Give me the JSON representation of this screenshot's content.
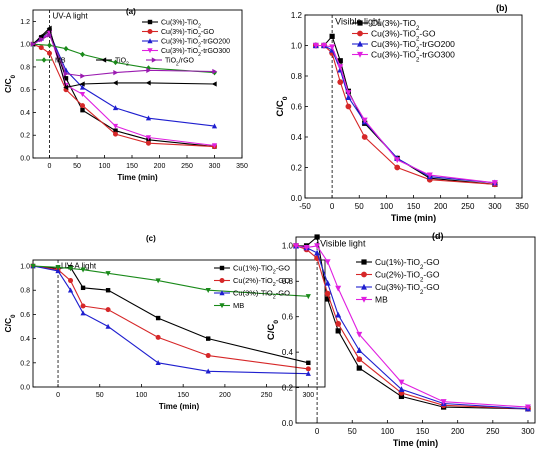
{
  "chart_data": [
    {
      "panel_id": "(a)",
      "type": "line",
      "xlabel": "Time (min)",
      "ylabel": "C/C₀",
      "xlim": [
        -30,
        350
      ],
      "ylim": [
        0,
        1.3
      ],
      "xticks": [
        0,
        50,
        100,
        150,
        200,
        250,
        300,
        350
      ],
      "yticks": [
        0,
        0.2,
        0.4,
        0.6,
        0.8,
        1.0,
        1.2
      ],
      "ytick_labels": [
        "0.0",
        "0.2",
        "0.4",
        "0.6",
        "0.8",
        "1.0",
        "1.2"
      ],
      "light_label": "UV-A light",
      "light_x": 0,
      "legend_position": "top-right",
      "legend_layout": "1-3-2",
      "series": [
        {
          "name": "Cu(3%)-TiO₂",
          "color": "#000000",
          "marker": "square",
          "x": [
            -30,
            -15,
            0,
            30,
            60,
            120,
            180,
            300
          ],
          "y": [
            1.0,
            1.06,
            1.12,
            0.7,
            0.42,
            0.24,
            0.16,
            0.1
          ]
        },
        {
          "name": "Cu(3%)-TiO₂-GO",
          "color": "#d62728",
          "marker": "circle",
          "x": [
            -30,
            -15,
            0,
            30,
            60,
            120,
            180,
            300
          ],
          "y": [
            1.0,
            0.97,
            0.92,
            0.6,
            0.46,
            0.21,
            0.13,
            0.1
          ]
        },
        {
          "name": "Cu(3%)-TiO₂-trGO200",
          "color": "#1f1fcf",
          "marker": "triangle",
          "x": [
            -30,
            -15,
            0,
            30,
            60,
            120,
            180,
            300
          ],
          "y": [
            1.0,
            1.05,
            1.1,
            0.77,
            0.62,
            0.44,
            0.35,
            0.28
          ]
        },
        {
          "name": "Cu(3%)-TiO₂-trGO300",
          "color": "#e020e0",
          "marker": "triangle-down",
          "x": [
            -30,
            -15,
            0,
            30,
            60,
            120,
            180,
            300
          ],
          "y": [
            1.0,
            1.04,
            1.1,
            0.64,
            0.56,
            0.28,
            0.18,
            0.11
          ]
        },
        {
          "name": "MB",
          "color": "#1a8a1a",
          "marker": "diamond",
          "x": [
            -30,
            0,
            30,
            60,
            120,
            180,
            300
          ],
          "y": [
            1.0,
            0.99,
            0.96,
            0.91,
            0.84,
            0.79,
            0.75
          ]
        },
        {
          "name": "TiO₂",
          "color": "#000000",
          "marker": "left-triangle",
          "x": [
            -30,
            -15,
            0,
            30,
            60,
            120,
            180,
            300
          ],
          "y": [
            1.0,
            1.07,
            1.14,
            0.62,
            0.65,
            0.66,
            0.66,
            0.65
          ]
        },
        {
          "name": "TiO₂/rGO",
          "color": "#9a1ab0",
          "marker": "right-triangle",
          "x": [
            -30,
            -15,
            0,
            30,
            60,
            120,
            180,
            300
          ],
          "y": [
            1.0,
            1.04,
            1.08,
            0.74,
            0.72,
            0.75,
            0.77,
            0.76
          ]
        }
      ]
    },
    {
      "panel_id": "(b)",
      "type": "line",
      "xlabel": "Time (min)",
      "ylabel": "C/C₀",
      "xlim": [
        -50,
        350
      ],
      "ylim": [
        0,
        1.2
      ],
      "xticks": [
        -50,
        0,
        50,
        100,
        150,
        200,
        250,
        300,
        350
      ],
      "yticks": [
        0,
        0.2,
        0.4,
        0.6,
        0.8,
        1.0,
        1.2
      ],
      "ytick_labels": [
        "0.0",
        "0.2",
        "0.4",
        "0.6",
        "0.8",
        "1.0",
        "1.2"
      ],
      "light_label": "Visible light",
      "light_x": 0,
      "legend_position": "top-right",
      "legend_layout": "single",
      "series": [
        {
          "name": "Cu(3%)-TiO₂",
          "color": "#000000",
          "marker": "square",
          "x": [
            -30,
            -15,
            0,
            15,
            30,
            60,
            120,
            180,
            300
          ],
          "y": [
            1.0,
            1.0,
            1.06,
            0.9,
            0.7,
            0.49,
            0.26,
            0.13,
            0.09
          ]
        },
        {
          "name": "Cu(3%)-TiO₂-GO",
          "color": "#d62728",
          "marker": "circle",
          "x": [
            -30,
            -15,
            0,
            15,
            30,
            60,
            120,
            180,
            300
          ],
          "y": [
            1.0,
            1.0,
            0.95,
            0.76,
            0.6,
            0.4,
            0.2,
            0.12,
            0.09
          ]
        },
        {
          "name": "Cu(3%)-TiO₂-trGO200",
          "color": "#1f1fcf",
          "marker": "triangle",
          "x": [
            -30,
            -15,
            0,
            15,
            30,
            60,
            120,
            180,
            300
          ],
          "y": [
            1.0,
            1.0,
            0.97,
            0.84,
            0.66,
            0.5,
            0.26,
            0.14,
            0.1
          ]
        },
        {
          "name": "Cu(3%)-TiO₂-trGO300",
          "color": "#e020e0",
          "marker": "triangle-down",
          "x": [
            -30,
            -15,
            0,
            15,
            30,
            60,
            120,
            180,
            300
          ],
          "y": [
            1.0,
            1.0,
            0.99,
            0.86,
            0.69,
            0.51,
            0.25,
            0.15,
            0.1
          ]
        }
      ]
    },
    {
      "panel_id": "(c)",
      "type": "line",
      "xlabel": "Time (min)",
      "ylabel": "C/C₀",
      "xlim": [
        -30,
        320
      ],
      "ylim": [
        0,
        1.05
      ],
      "xticks": [
        0,
        50,
        100,
        150,
        200,
        250,
        300
      ],
      "yticks": [
        0,
        0.2,
        0.4,
        0.6,
        0.8,
        1.0
      ],
      "ytick_labels": [
        "0.0",
        "0.2",
        "0.4",
        "0.6",
        "0.8",
        "1.0"
      ],
      "light_label": "UV-A light",
      "light_x": 0,
      "legend_position": "top-right",
      "legend_layout": "single",
      "series": [
        {
          "name": "Cu(1%)-TiO₂-GO",
          "color": "#000000",
          "marker": "square",
          "x": [
            -30,
            0,
            15,
            30,
            60,
            120,
            180,
            300
          ],
          "y": [
            1.0,
            0.98,
            0.99,
            0.82,
            0.8,
            0.57,
            0.4,
            0.2
          ]
        },
        {
          "name": "Cu(2%)-TiO₂-GO",
          "color": "#d62728",
          "marker": "circle",
          "x": [
            -30,
            0,
            15,
            30,
            60,
            120,
            180,
            300
          ],
          "y": [
            1.0,
            0.97,
            0.88,
            0.67,
            0.64,
            0.41,
            0.26,
            0.15
          ]
        },
        {
          "name": "Cu(3%)-TiO₂-GO",
          "color": "#1f1fcf",
          "marker": "triangle",
          "x": [
            -30,
            0,
            15,
            30,
            60,
            120,
            180,
            300
          ],
          "y": [
            1.0,
            0.96,
            0.8,
            0.61,
            0.5,
            0.2,
            0.13,
            0.11
          ]
        },
        {
          "name": "MB",
          "color": "#1a8a1a",
          "marker": "triangle-down",
          "x": [
            -30,
            0,
            15,
            30,
            60,
            120,
            180,
            300
          ],
          "y": [
            1.0,
            0.99,
            0.98,
            0.97,
            0.94,
            0.88,
            0.8,
            0.75
          ]
        }
      ]
    },
    {
      "panel_id": "(d)",
      "type": "line",
      "xlabel": "Time (min)",
      "ylabel": "C/C₀",
      "xlim": [
        -30,
        310
      ],
      "ylim": [
        0,
        1.05
      ],
      "xticks": [
        0,
        50,
        100,
        150,
        200,
        250,
        300
      ],
      "yticks": [
        0,
        0.2,
        0.4,
        0.6,
        0.8,
        1.0
      ],
      "ytick_labels": [
        "0.0",
        "0.2",
        "0.4",
        "0.6",
        "0.8",
        "1.0"
      ],
      "light_label": "Visible light",
      "light_x": 0,
      "legend_position": "top-right",
      "legend_layout": "single",
      "series": [
        {
          "name": "Cu(1%)-TiO₂-GO",
          "color": "#000000",
          "marker": "square",
          "x": [
            -30,
            -15,
            0,
            15,
            30,
            60,
            120,
            180,
            300
          ],
          "y": [
            1.0,
            1.0,
            1.05,
            0.7,
            0.52,
            0.31,
            0.15,
            0.09,
            0.08
          ]
        },
        {
          "name": "Cu(2%)-TiO₂-GO",
          "color": "#d62728",
          "marker": "circle",
          "x": [
            -30,
            -15,
            0,
            15,
            30,
            60,
            120,
            180,
            300
          ],
          "y": [
            1.0,
            0.98,
            0.93,
            0.73,
            0.56,
            0.36,
            0.17,
            0.1,
            0.08
          ]
        },
        {
          "name": "Cu(3%)-TiO₂-GO",
          "color": "#1f1fcf",
          "marker": "triangle",
          "x": [
            -30,
            -15,
            0,
            15,
            30,
            60,
            120,
            180,
            300
          ],
          "y": [
            1.0,
            0.99,
            0.96,
            0.79,
            0.61,
            0.41,
            0.19,
            0.11,
            0.08
          ]
        },
        {
          "name": "MB",
          "color": "#e020e0",
          "marker": "triangle-down",
          "x": [
            -30,
            -15,
            0,
            15,
            30,
            60,
            120,
            180,
            300
          ],
          "y": [
            1.0,
            0.99,
            1.0,
            0.91,
            0.76,
            0.5,
            0.23,
            0.12,
            0.09
          ]
        }
      ]
    }
  ]
}
